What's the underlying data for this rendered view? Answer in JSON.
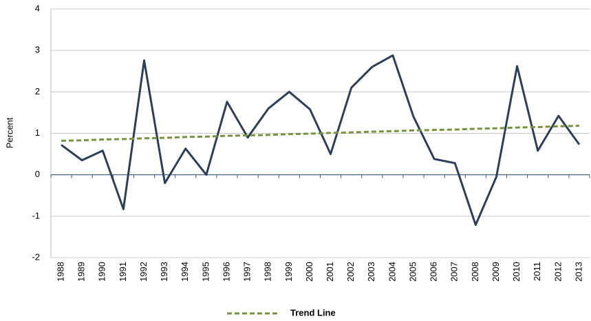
{
  "chart_data": {
    "type": "line",
    "ylabel": "Percent",
    "categories": [
      "1988",
      "1989",
      "1990",
      "1991",
      "1992",
      "1993",
      "1994",
      "1995",
      "1996",
      "1997",
      "1998",
      "1999",
      "2000",
      "2001",
      "2002",
      "2003",
      "2004",
      "2005",
      "2006",
      "2007",
      "2008",
      "2009",
      "2010",
      "2011",
      "2012",
      "2013"
    ],
    "series": [
      {
        "color": "#2b3f5c",
        "values": [
          0.72,
          0.35,
          0.58,
          -0.83,
          2.76,
          -0.2,
          0.63,
          0,
          1.76,
          0.9,
          1.6,
          2.0,
          1.58,
          0.5,
          2.1,
          2.6,
          2.88,
          1.4,
          0.38,
          0.28,
          -1.21,
          -0.05,
          2.62,
          0.58,
          1.42,
          0.73
        ]
      },
      {
        "name": "Trend Line",
        "color": "#77933c",
        "dashed": true,
        "values": [
          0.82,
          0.83,
          0.85,
          0.86,
          0.88,
          0.89,
          0.91,
          0.92,
          0.94,
          0.95,
          0.96,
          0.98,
          0.99,
          1.01,
          1.02,
          1.04,
          1.05,
          1.07,
          1.08,
          1.09,
          1.11,
          1.12,
          1.14,
          1.15,
          1.17,
          1.18
        ]
      }
    ],
    "ylim": [
      -2,
      4
    ],
    "yticks": [
      -2,
      -1,
      0,
      1,
      2,
      3,
      4
    ],
    "grid": true,
    "legend": "bottom"
  }
}
